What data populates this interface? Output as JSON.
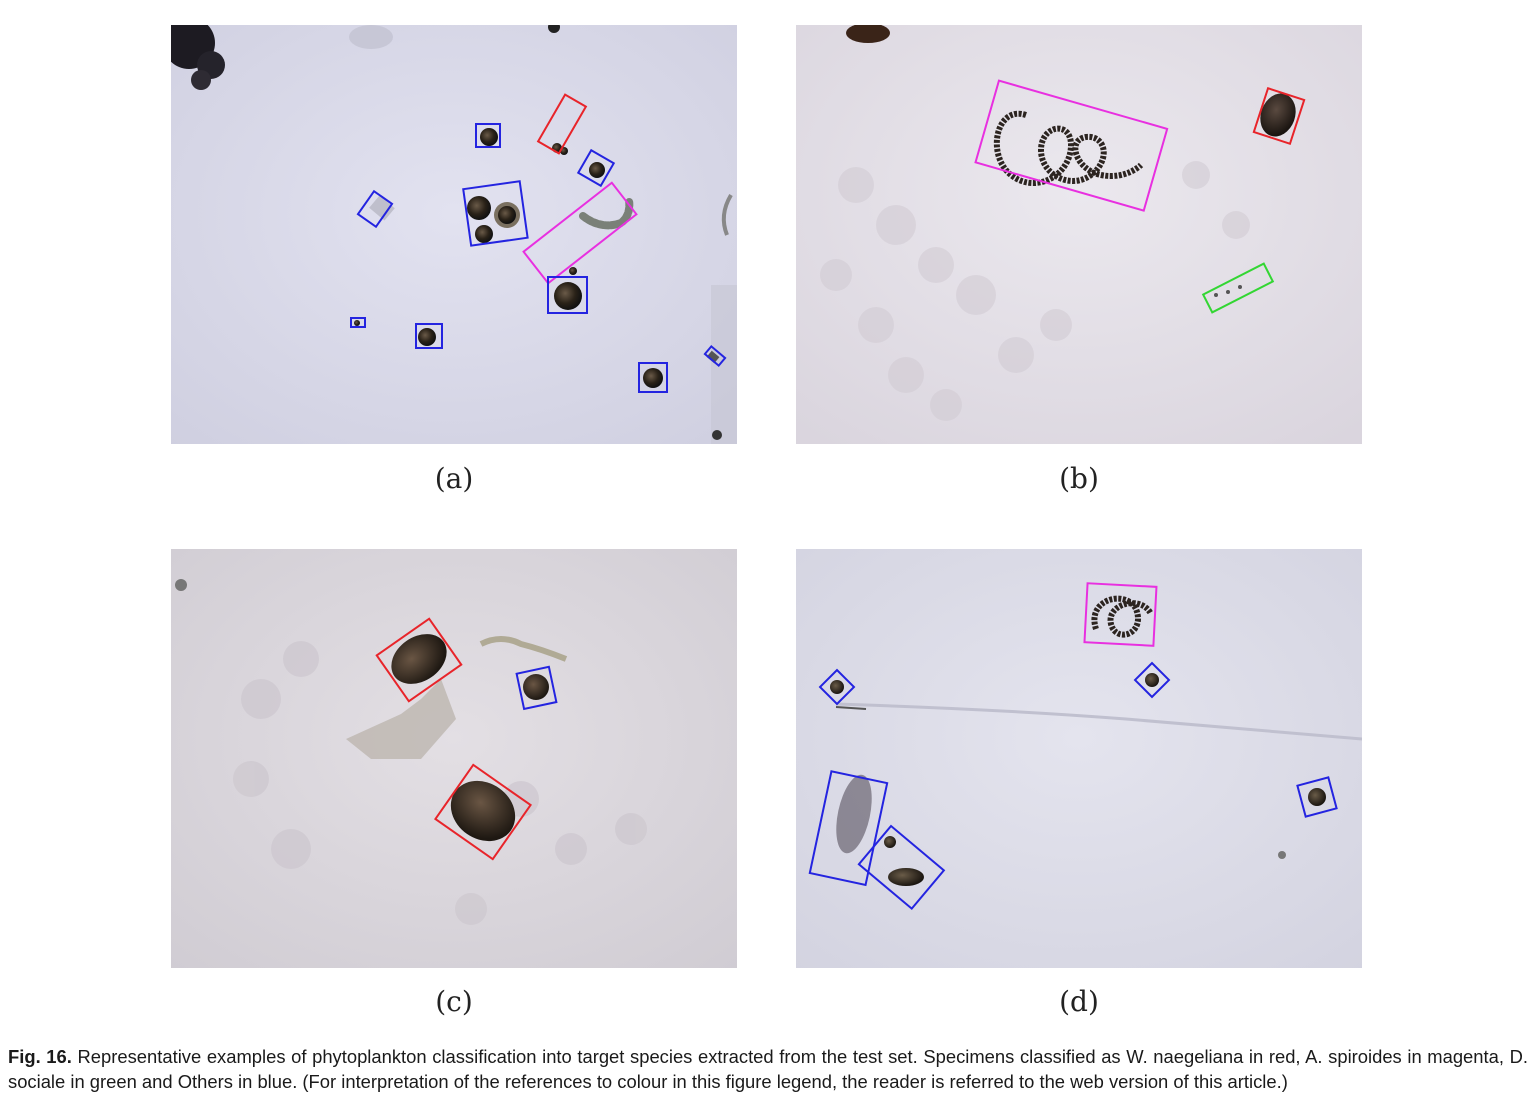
{
  "figure": {
    "panels": [
      {
        "id": "a",
        "label": "(a)"
      },
      {
        "id": "b",
        "label": "(b)"
      },
      {
        "id": "c",
        "label": "(c)"
      },
      {
        "id": "d",
        "label": "(d)"
      }
    ],
    "caption": {
      "label": "Fig. 16.",
      "text": "Representative examples of phytoplankton classification into target species extracted from the test set. Specimens classified as W. naegeliana in red, A. spiroides in magenta, D. sociale in green and Others in blue. (For interpretation of the references to colour in this figure legend, the reader is referred to the web version of this article.)"
    },
    "class_colors": {
      "w_naegeliana": "#e8242a",
      "a_spiroides": "#e830e0",
      "d_sociale": "#33d633",
      "others": "#2424e0"
    },
    "background_colors": {
      "panel_a": "#d9d9ea",
      "panel_b": "#e4e0e8",
      "panel_c": "#dcd8de",
      "panel_d": "#dcdce8"
    }
  }
}
